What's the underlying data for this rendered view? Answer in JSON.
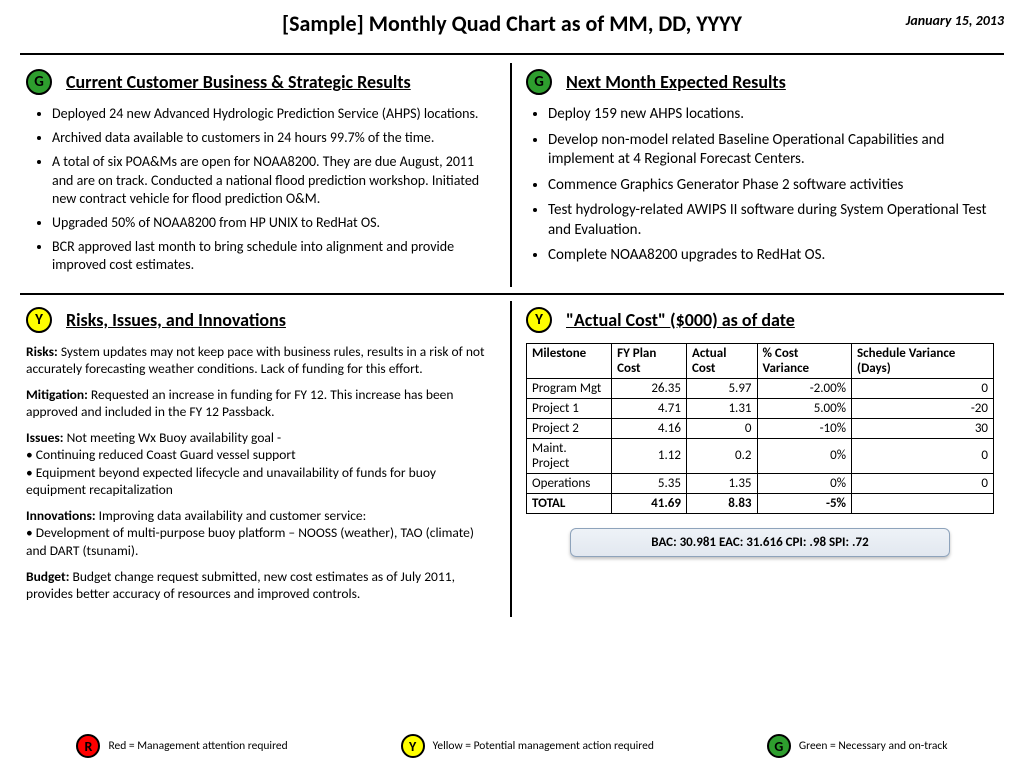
{
  "header": {
    "title": "[Sample] Monthly Quad Chart as of MM, DD, YYYY",
    "date": "January 15, 2013"
  },
  "colors": {
    "green": "#2e9e2e",
    "yellow": "#ffff00",
    "red": "#ff0000"
  },
  "q1": {
    "badge": "G",
    "badgeColor": "#2e9e2e",
    "title": "Current Customer Business & Strategic Results",
    "bullets": [
      "Deployed 24 new Advanced Hydrologic Prediction Service (AHPS) locations.",
      "Archived data available to customers in 24 hours 99.7% of the time.",
      "A total of six POA&Ms are open for NOAA8200.  They are due August, 2011 and are on track.  Conducted a national flood prediction workshop.  Initiated new contract vehicle for flood prediction O&M.",
      "Upgraded 50% of NOAA8200 from HP UNIX to RedHat OS.",
      "BCR approved last month to bring schedule into alignment and provide improved cost estimates."
    ]
  },
  "q2": {
    "badge": "G",
    "badgeColor": "#2e9e2e",
    "title": "Next Month Expected Results",
    "bullets": [
      "Deploy 159 new AHPS locations.",
      "Develop non-model related Baseline Operational Capabilities and implement at 4 Regional Forecast Centers.",
      "Commence Graphics Generator Phase 2 software activities",
      "Test hydrology-related AWIPS II software during System Operational Test and Evaluation.",
      "Complete NOAA8200 upgrades to RedHat OS."
    ]
  },
  "q3": {
    "badge": "Y",
    "badgeColor": "#ffff00",
    "title": "Risks, Issues, and Innovations",
    "risks_label": "Risks:",
    "risks_text": " System updates may not keep pace with business rules, results in a risk of not accurately forecasting weather conditions.  Lack of funding for this effort.",
    "mitigation_label": "Mitigation:",
    "mitigation_text": "  Requested an increase in funding for FY 12.  This increase has been approved and included in the FY 12 Passback.",
    "issues_label": "Issues:",
    "issues_text": "   Not meeting Wx Buoy availability goal -",
    "issues_b1": "• Continuing reduced Coast Guard vessel support",
    "issues_b2": "• Equipment beyond expected lifecycle and unavailability of  funds for buoy equipment recapitalization",
    "innovations_label": "Innovations:",
    "innovations_text": "  Improving data availability and customer service:",
    "innovations_b1": "• Development of multi-purpose buoy platform – NOOSS (weather), TAO (climate) and DART (tsunami).",
    "budget_label": "Budget:",
    "budget_text": "  Budget change request submitted, new cost estimates as of July 2011, provides better accuracy of resources and improved controls."
  },
  "q4": {
    "badge": "Y",
    "badgeColor": "#ffff00",
    "title": "\"Actual Cost\" ($000) as of date",
    "columns": [
      "Milestone",
      "FY Plan Cost",
      "Actual Cost",
      "% Cost Variance",
      "Schedule Variance (Days)"
    ],
    "rows": [
      [
        "Program Mgt",
        "26.35",
        "5.97",
        "-2.00%",
        "0"
      ],
      [
        "Project 1",
        "4.71",
        "1.31",
        "5.00%",
        "-20"
      ],
      [
        "Project 2",
        "4.16",
        "0",
        "-10%",
        "30"
      ],
      [
        "Maint. Project",
        "1.12",
        "0.2",
        "0%",
        "0"
      ],
      [
        "Operations",
        "5.35",
        "1.35",
        "0%",
        "0"
      ]
    ],
    "total": [
      "TOTAL",
      "41.69",
      "8.83",
      "-5%",
      ""
    ],
    "metrics": "BAC: 30.981     EAC: 31.616  CPI: .98   SPI: .72"
  },
  "legend": {
    "r": {
      "badge": "R",
      "color": "#ff0000",
      "text": "Red = Management attention required"
    },
    "y": {
      "badge": "Y",
      "color": "#ffff00",
      "text": "Yellow = Potential management action required"
    },
    "g": {
      "badge": "G",
      "color": "#2e9e2e",
      "text": "Green = Necessary and on-track"
    }
  }
}
